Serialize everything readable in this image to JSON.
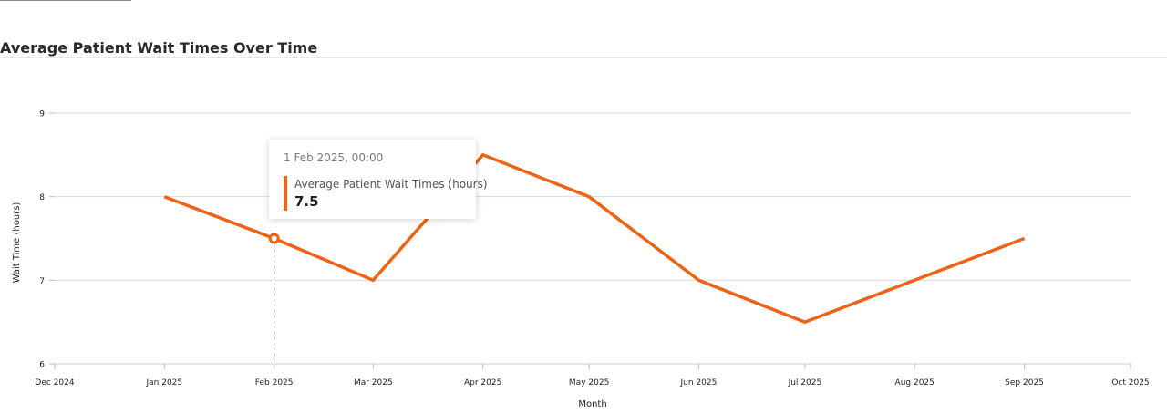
{
  "chart_data": {
    "type": "line",
    "title": "Average Patient Wait Times Over Time",
    "xlabel": "Month",
    "ylabel": "Wait Time (hours)",
    "x_ticks": [
      "Dec 2024",
      "Jan 2025",
      "Feb 2025",
      "Mar 2025",
      "Apr 2025",
      "May 2025",
      "Jun 2025",
      "Jul 2025",
      "Aug 2025",
      "Sep 2025",
      "Oct 2025"
    ],
    "y_ticks": [
      "6",
      "7",
      "8",
      "9"
    ],
    "ylim": [
      6,
      9
    ],
    "xlim": [
      "2024-12-01",
      "2025-10-01"
    ],
    "grid": true,
    "series": [
      {
        "name": "Average Patient Wait Times (hours)",
        "color": "#ee6314",
        "points": [
          {
            "x": "2025-01-01",
            "y": 8
          },
          {
            "x": "2025-02-01",
            "y": 7.5
          },
          {
            "x": "2025-03-01",
            "y": 7
          },
          {
            "x": "2025-04-01",
            "y": 8.5
          },
          {
            "x": "2025-05-01",
            "y": 8
          },
          {
            "x": "2025-06-01",
            "y": 7
          },
          {
            "x": "2025-07-01",
            "y": 6.5
          },
          {
            "x": "2025-08-01",
            "y": 7
          },
          {
            "x": "2025-09-01",
            "y": 7.5
          }
        ]
      }
    ]
  },
  "tooltip": {
    "date": "1 Feb 2025, 00:00",
    "series_name": "Average Patient Wait Times (hours)",
    "value": "7.5",
    "point_x": "2025-02-01"
  }
}
